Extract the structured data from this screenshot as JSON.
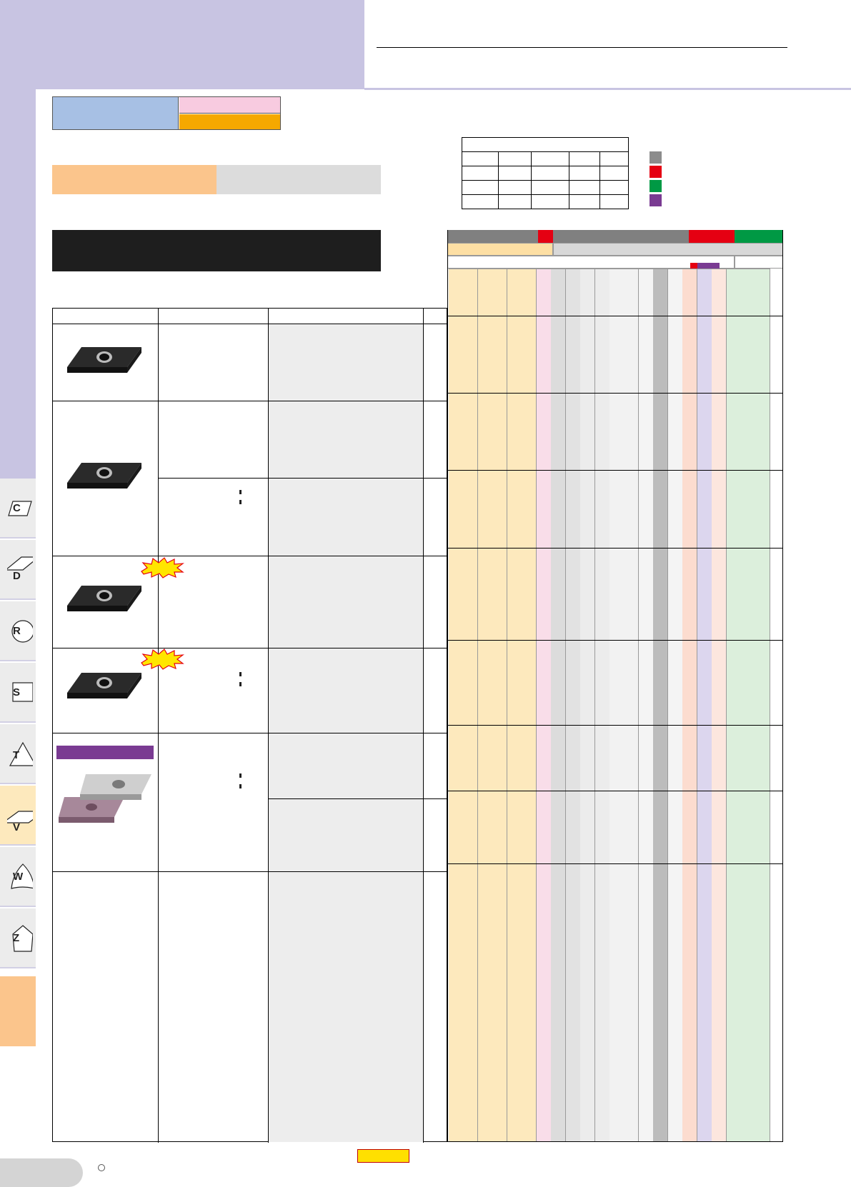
{
  "side_tabs": [
    {
      "letter": "C",
      "icon": "rhombus-80-icon",
      "active": false
    },
    {
      "letter": "D",
      "icon": "rhombus-55-icon",
      "active": false
    },
    {
      "letter": "R",
      "icon": "round-icon",
      "active": false
    },
    {
      "letter": "S",
      "icon": "square-icon",
      "active": false
    },
    {
      "letter": "T",
      "icon": "triangle-icon",
      "active": false
    },
    {
      "letter": "V",
      "icon": "rhombus-35-icon",
      "active": true
    },
    {
      "letter": "W",
      "icon": "trigon-icon",
      "active": false
    },
    {
      "letter": "Z",
      "icon": "pentagon-icon",
      "active": false
    }
  ],
  "legend_colors": [
    "#8c8c8c",
    "#e50012",
    "#009944",
    "#7a3b92"
  ],
  "grid_header_colors": {
    "dark_grey": "#808080",
    "red": "#e50012",
    "green": "#009944",
    "purple": "#7a3b92",
    "light_orange": "#fddfa4",
    "light_grey": "#d8d8d8"
  },
  "column_colors": [
    "#fde9bd",
    "#fde9bd",
    "#fde9bd",
    "#fde9bd",
    "#fde9bd",
    "#fde9bd",
    "#f9dde9",
    "#dcdcdc",
    "#e2e2e2",
    "#ececec",
    "#ececec",
    "#f2f2f2",
    "#f2f2f2",
    "#f4f4f4",
    "#bcbcbc",
    "#f4f4f4",
    "#fcdccf",
    "#dcd6ee",
    "#fce6de",
    "#dcefdc",
    "#dcefdc",
    "#dcefdc"
  ]
}
